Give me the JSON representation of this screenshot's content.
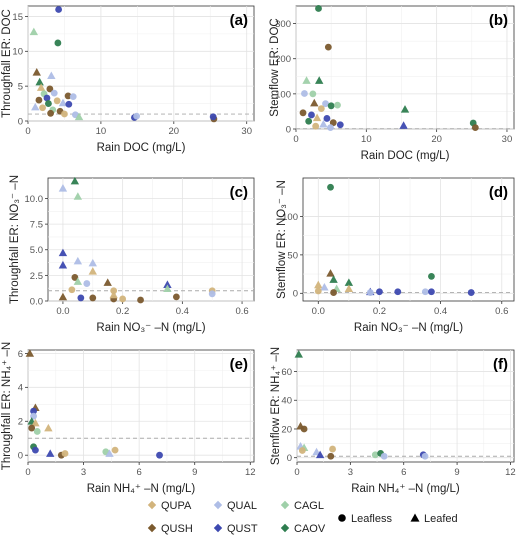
{
  "colors": {
    "QUPA": "#d2b47c",
    "QUAL": "#aebde6",
    "CAGL": "#9fd0a9",
    "QUSH": "#7b5a2e",
    "QUST": "#3d49b0",
    "CAOV": "#2e7d4f"
  },
  "legend": {
    "species": [
      {
        "key": "QUPA",
        "label": "QUPA"
      },
      {
        "key": "QUAL",
        "label": "QUAL"
      },
      {
        "key": "CAGL",
        "label": "CAGL"
      },
      {
        "key": "QUSH",
        "label": "QUSH"
      },
      {
        "key": "QUST",
        "label": "QUST"
      },
      {
        "key": "CAOV",
        "label": "CAOV"
      }
    ],
    "phases": [
      {
        "key": "leafless",
        "label": "Leafless"
      },
      {
        "key": "leafed",
        "label": "Leafed"
      }
    ]
  },
  "chart_data": [
    {
      "panel": "(a)",
      "type": "scatter",
      "xlabel": "Rain DOC (mg/L)",
      "ylabel": "Throughfall ER: DOC",
      "xlim": [
        0,
        31
      ],
      "ylim": [
        0,
        16.5
      ],
      "xticks": [
        0,
        10,
        20,
        30
      ],
      "yticks": [
        0,
        5,
        10,
        15
      ],
      "ref_line": 1,
      "points": [
        {
          "x": 0.8,
          "y": 12.8,
          "s": "CAGL",
          "m": "leafed"
        },
        {
          "x": 4.2,
          "y": 16.0,
          "s": "QUST",
          "m": "leafless"
        },
        {
          "x": 4.1,
          "y": 11.2,
          "s": "CAOV",
          "m": "leafless"
        },
        {
          "x": 1.2,
          "y": 7.0,
          "s": "QUSH",
          "m": "leafed"
        },
        {
          "x": 1.6,
          "y": 5.6,
          "s": "CAOV",
          "m": "leafed"
        },
        {
          "x": 3.2,
          "y": 6.5,
          "s": "QUAL",
          "m": "leafed"
        },
        {
          "x": 1.8,
          "y": 4.8,
          "s": "QUPA",
          "m": "leafed"
        },
        {
          "x": 3.0,
          "y": 4.6,
          "s": "QUSH",
          "m": "leafless"
        },
        {
          "x": 3.6,
          "y": 4.0,
          "s": "QUAL",
          "m": "leafless"
        },
        {
          "x": 2.2,
          "y": 3.9,
          "s": "CAGL",
          "m": "leafless"
        },
        {
          "x": 5.5,
          "y": 3.6,
          "s": "QUSH",
          "m": "leafless"
        },
        {
          "x": 6.2,
          "y": 3.5,
          "s": "QUAL",
          "m": "leafless"
        },
        {
          "x": 2.6,
          "y": 3.3,
          "s": "QUST",
          "m": "leafless"
        },
        {
          "x": 1.5,
          "y": 3.0,
          "s": "QUSH",
          "m": "leafless"
        },
        {
          "x": 4.0,
          "y": 2.9,
          "s": "QUPA",
          "m": "leafless"
        },
        {
          "x": 2.8,
          "y": 2.5,
          "s": "CAOV",
          "m": "leafless"
        },
        {
          "x": 4.8,
          "y": 2.6,
          "s": "QUAL",
          "m": "leafed"
        },
        {
          "x": 5.6,
          "y": 2.4,
          "s": "QUST",
          "m": "leafless"
        },
        {
          "x": 1.0,
          "y": 2.0,
          "s": "QUAL",
          "m": "leafed"
        },
        {
          "x": 2.0,
          "y": 1.9,
          "s": "QUPA",
          "m": "leafless"
        },
        {
          "x": 3.4,
          "y": 1.6,
          "s": "CAGL",
          "m": "leafless"
        },
        {
          "x": 4.4,
          "y": 1.4,
          "s": "QUSH",
          "m": "leafless"
        },
        {
          "x": 3.1,
          "y": 1.1,
          "s": "QUSH",
          "m": "leafless"
        },
        {
          "x": 5.0,
          "y": 1.0,
          "s": "QUPA",
          "m": "leafless"
        },
        {
          "x": 6.5,
          "y": 0.9,
          "s": "QUAL",
          "m": "leafless"
        },
        {
          "x": 7.0,
          "y": 0.6,
          "s": "CAGL",
          "m": "leafed"
        },
        {
          "x": 14.6,
          "y": 0.5,
          "s": "QUST",
          "m": "leafless"
        },
        {
          "x": 14.9,
          "y": 0.7,
          "s": "QUAL",
          "m": "leafless"
        },
        {
          "x": 25.5,
          "y": 0.3,
          "s": "QUSH",
          "m": "leafless"
        },
        {
          "x": 25.4,
          "y": 0.6,
          "s": "QUST",
          "m": "leafless"
        }
      ]
    },
    {
      "panel": "(b)",
      "type": "scatter",
      "xlabel": "Rain DOC (mg/L)",
      "ylabel": "Stemflow ER: DOC",
      "xlim": [
        0,
        31
      ],
      "ylim": [
        0,
        350
      ],
      "xticks": [
        0,
        10,
        20,
        30
      ],
      "yticks": [
        0,
        100,
        200,
        300
      ],
      "ref_line": 1,
      "points": [
        {
          "x": 3.2,
          "y": 343,
          "s": "CAOV",
          "m": "leafless"
        },
        {
          "x": 4.6,
          "y": 233,
          "s": "QUSH",
          "m": "leafless"
        },
        {
          "x": 1.5,
          "y": 138,
          "s": "CAGL",
          "m": "leafed"
        },
        {
          "x": 3.3,
          "y": 138,
          "s": "CAOV",
          "m": "leafed"
        },
        {
          "x": 1.2,
          "y": 101,
          "s": "QUAL",
          "m": "leafless"
        },
        {
          "x": 2.4,
          "y": 100,
          "s": "CAGL",
          "m": "leafless"
        },
        {
          "x": 2.6,
          "y": 74,
          "s": "QUSH",
          "m": "leafed"
        },
        {
          "x": 4.2,
          "y": 72,
          "s": "QUAL",
          "m": "leafless"
        },
        {
          "x": 5.0,
          "y": 66,
          "s": "CAOV",
          "m": "leafless"
        },
        {
          "x": 5.9,
          "y": 68,
          "s": "CAGL",
          "m": "leafless"
        },
        {
          "x": 3.6,
          "y": 58,
          "s": "QUPA",
          "m": "leafless"
        },
        {
          "x": 15.5,
          "y": 56,
          "s": "CAOV",
          "m": "leafed"
        },
        {
          "x": 1.0,
          "y": 46,
          "s": "QUSH",
          "m": "leafless"
        },
        {
          "x": 2.2,
          "y": 40,
          "s": "QUST",
          "m": "leafless"
        },
        {
          "x": 3.0,
          "y": 32,
          "s": "QUPA",
          "m": "leafed"
        },
        {
          "x": 4.4,
          "y": 30,
          "s": "QUST",
          "m": "leafless"
        },
        {
          "x": 1.8,
          "y": 22,
          "s": "CAOV",
          "m": "leafless"
        },
        {
          "x": 5.3,
          "y": 18,
          "s": "QUSH",
          "m": "leafless"
        },
        {
          "x": 25.2,
          "y": 17,
          "s": "CAOV",
          "m": "leafless"
        },
        {
          "x": 3.9,
          "y": 14,
          "s": "QUAL",
          "m": "leafed"
        },
        {
          "x": 6.3,
          "y": 12,
          "s": "QUST",
          "m": "leafless"
        },
        {
          "x": 2.8,
          "y": 8,
          "s": "QUPA",
          "m": "leafless"
        },
        {
          "x": 15.3,
          "y": 10,
          "s": "QUST",
          "m": "leafed"
        },
        {
          "x": 25.5,
          "y": 4,
          "s": "QUSH",
          "m": "leafless"
        },
        {
          "x": 4.9,
          "y": 4,
          "s": "QUAL",
          "m": "leafless"
        }
      ]
    },
    {
      "panel": "(c)",
      "type": "scatter",
      "xlabel": "Rain NO₃⁻ –N (mg/L)",
      "ylabel": "Throughfall ER: NO₃⁻ –N",
      "xlim": [
        -0.05,
        0.64
      ],
      "ylim": [
        0,
        12
      ],
      "xticks": [
        0.0,
        0.2,
        0.4,
        0.6
      ],
      "xtick_labels": [
        "0.0",
        "0.2",
        "0.4",
        "0.6"
      ],
      "yticks": [
        0,
        2.5,
        5,
        7.5,
        10
      ],
      "ytick_labels": [
        "0.0",
        "2.5",
        "5.0",
        "7.5",
        "10.0"
      ],
      "ref_line": 1,
      "points": [
        {
          "x": 0.04,
          "y": 11.7,
          "s": "CAOV",
          "m": "leafed"
        },
        {
          "x": 0.0,
          "y": 11.0,
          "s": "QUAL",
          "m": "leafed"
        },
        {
          "x": 0.05,
          "y": 10.2,
          "s": "CAGL",
          "m": "leafed"
        },
        {
          "x": 0.0,
          "y": 4.7,
          "s": "QUST",
          "m": "leafed"
        },
        {
          "x": 0.0,
          "y": 3.5,
          "s": "QUST",
          "m": "leafed"
        },
        {
          "x": 0.05,
          "y": 3.9,
          "s": "QUAL",
          "m": "leafed"
        },
        {
          "x": 0.1,
          "y": 3.7,
          "s": "QUAL",
          "m": "leafed"
        },
        {
          "x": 0.1,
          "y": 2.9,
          "s": "QUPA",
          "m": "leafed"
        },
        {
          "x": 0.04,
          "y": 2.3,
          "s": "QUSH",
          "m": "leafless"
        },
        {
          "x": 0.05,
          "y": 1.9,
          "s": "CAGL",
          "m": "leafed"
        },
        {
          "x": 0.08,
          "y": 1.7,
          "s": "QUAL",
          "m": "leafless"
        },
        {
          "x": 0.15,
          "y": 1.8,
          "s": "QUSH",
          "m": "leafed"
        },
        {
          "x": 0.35,
          "y": 1.6,
          "s": "QUST",
          "m": "leafed"
        },
        {
          "x": 0.35,
          "y": 1.2,
          "s": "CAGL",
          "m": "leafed"
        },
        {
          "x": 0.03,
          "y": 1.1,
          "s": "QUPA",
          "m": "leafless"
        },
        {
          "x": 0.17,
          "y": 1.0,
          "s": "QUPA",
          "m": "leafless"
        },
        {
          "x": 0.5,
          "y": 1.0,
          "s": "QUPA",
          "m": "leafless"
        },
        {
          "x": 0.5,
          "y": 0.7,
          "s": "QUAL",
          "m": "leafless"
        },
        {
          "x": 0.0,
          "y": 0.4,
          "s": "QUSH",
          "m": "leafed"
        },
        {
          "x": 0.06,
          "y": 0.3,
          "s": "QUST",
          "m": "leafless"
        },
        {
          "x": 0.1,
          "y": 0.3,
          "s": "QUSH",
          "m": "leafless"
        },
        {
          "x": 0.17,
          "y": 0.2,
          "s": "QUSH",
          "m": "leafless"
        },
        {
          "x": 0.2,
          "y": 0.2,
          "s": "QUPA",
          "m": "leafless"
        },
        {
          "x": 0.26,
          "y": 0.1,
          "s": "QUSH",
          "m": "leafless"
        },
        {
          "x": 0.38,
          "y": 0.4,
          "s": "QUSH",
          "m": "leafless"
        },
        {
          "x": 0.17,
          "y": 0.6,
          "s": "QUPA",
          "m": "leafed"
        }
      ]
    },
    {
      "panel": "(d)",
      "type": "scatter",
      "xlabel": "Rain NO₃⁻ –N (mg/L)",
      "ylabel": "Stemflow ER: NO₃⁻ –N",
      "xlim": [
        -0.05,
        0.64
      ],
      "ylim": [
        -10,
        150
      ],
      "xticks": [
        0.0,
        0.2,
        0.4,
        0.6
      ],
      "xtick_labels": [
        "0.0",
        "0.2",
        "0.4",
        "0.6"
      ],
      "yticks": [
        0,
        50,
        100
      ],
      "ref_line": 1,
      "points": [
        {
          "x": 0.04,
          "y": 138,
          "s": "CAOV",
          "m": "leafless"
        },
        {
          "x": 0.04,
          "y": 26,
          "s": "QUSH",
          "m": "leafed"
        },
        {
          "x": 0.37,
          "y": 22,
          "s": "CAOV",
          "m": "leafless"
        },
        {
          "x": 0.05,
          "y": 18,
          "s": "CAOV",
          "m": "leafed"
        },
        {
          "x": 0.1,
          "y": 14,
          "s": "CAOV",
          "m": "leafed"
        },
        {
          "x": 0.0,
          "y": 11,
          "s": "QUPA",
          "m": "leafed"
        },
        {
          "x": 0.02,
          "y": 8,
          "s": "QUAL",
          "m": "leafed"
        },
        {
          "x": 0.06,
          "y": 6,
          "s": "CAGL",
          "m": "leafed"
        },
        {
          "x": 0.1,
          "y": 6,
          "s": "QUPA",
          "m": "leafed"
        },
        {
          "x": 0.0,
          "y": 3,
          "s": "QUPA",
          "m": "leafless"
        },
        {
          "x": 0.17,
          "y": 2,
          "s": "QUST",
          "m": "leafed"
        },
        {
          "x": 0.2,
          "y": 2,
          "s": "QUST",
          "m": "leafless"
        },
        {
          "x": 0.26,
          "y": 2,
          "s": "QUST",
          "m": "leafless"
        },
        {
          "x": 0.35,
          "y": 2,
          "s": "QUAL",
          "m": "leafless"
        },
        {
          "x": 0.37,
          "y": 2,
          "s": "QUST",
          "m": "leafless"
        },
        {
          "x": 0.5,
          "y": 1,
          "s": "QUST",
          "m": "leafless"
        },
        {
          "x": 0.17,
          "y": 1,
          "s": "QUAL",
          "m": "leafless"
        },
        {
          "x": 0.05,
          "y": 1,
          "s": "QUSH",
          "m": "leafless"
        }
      ]
    },
    {
      "panel": "(e)",
      "type": "scatter",
      "xlabel": "Rain NH₄⁺ –N (mg/L)",
      "ylabel": "Throughfall ER: NH₄⁺ –N",
      "xlim": [
        0,
        12.2
      ],
      "ylim": [
        -0.4,
        6.2
      ],
      "xticks": [
        0,
        3,
        6,
        9,
        12
      ],
      "yticks": [
        0,
        2,
        4,
        6
      ],
      "ref_line": 1,
      "points": [
        {
          "x": 0.1,
          "y": 6.0,
          "s": "QUSH",
          "m": "leafed"
        },
        {
          "x": 0.4,
          "y": 2.8,
          "s": "QUSH",
          "m": "leafed"
        },
        {
          "x": 0.3,
          "y": 2.6,
          "s": "QUST",
          "m": "leafless"
        },
        {
          "x": 0.3,
          "y": 2.3,
          "s": "QUAL",
          "m": "leafless"
        },
        {
          "x": 0.2,
          "y": 2.0,
          "s": "CAOV",
          "m": "leafed"
        },
        {
          "x": 0.4,
          "y": 1.9,
          "s": "QUPA",
          "m": "leafed"
        },
        {
          "x": 0.2,
          "y": 1.6,
          "s": "QUSH",
          "m": "leafless"
        },
        {
          "x": 1.1,
          "y": 1.6,
          "s": "QUPA",
          "m": "leafed"
        },
        {
          "x": 0.5,
          "y": 1.4,
          "s": "CAGL",
          "m": "leafless"
        },
        {
          "x": 0.3,
          "y": 0.5,
          "s": "CAOV",
          "m": "leafless"
        },
        {
          "x": 0.4,
          "y": 0.3,
          "s": "QUST",
          "m": "leafless"
        },
        {
          "x": 1.2,
          "y": 0.1,
          "s": "QUST",
          "m": "leafed"
        },
        {
          "x": 1.8,
          "y": 0.0,
          "s": "QUSH",
          "m": "leafless"
        },
        {
          "x": 2.0,
          "y": 0.1,
          "s": "QUPA",
          "m": "leafless"
        },
        {
          "x": 4.2,
          "y": 0.2,
          "s": "CAGL",
          "m": "leafless"
        },
        {
          "x": 4.7,
          "y": 0.3,
          "s": "QUPA",
          "m": "leafless"
        },
        {
          "x": 4.4,
          "y": 0.1,
          "s": "QUAL",
          "m": "leafed"
        },
        {
          "x": 7.1,
          "y": 0.0,
          "s": "QUST",
          "m": "leafless"
        }
      ]
    },
    {
      "panel": "(f)",
      "type": "scatter",
      "xlabel": "Rain NH₄⁺ –N (mg/L)",
      "ylabel": "Stemflow ER: NH₄⁺ –N",
      "xlim": [
        0,
        12.2
      ],
      "ylim": [
        -3,
        75
      ],
      "xticks": [
        0,
        3,
        6,
        9,
        12
      ],
      "yticks": [
        0,
        20,
        40,
        60
      ],
      "ref_line": 1,
      "points": [
        {
          "x": 0.1,
          "y": 72,
          "s": "CAOV",
          "m": "leafed"
        },
        {
          "x": 0.2,
          "y": 22,
          "s": "QUSH",
          "m": "leafed"
        },
        {
          "x": 0.4,
          "y": 20,
          "s": "QUSH",
          "m": "leafless"
        },
        {
          "x": 0.2,
          "y": 8,
          "s": "QUAL",
          "m": "leafed"
        },
        {
          "x": 0.4,
          "y": 7,
          "s": "CAGL",
          "m": "leafed"
        },
        {
          "x": 0.3,
          "y": 5,
          "s": "QUPA",
          "m": "leafless"
        },
        {
          "x": 1.1,
          "y": 4,
          "s": "QUAL",
          "m": "leafed"
        },
        {
          "x": 1.3,
          "y": 2,
          "s": "QUST",
          "m": "leafed"
        },
        {
          "x": 1.9,
          "y": 1,
          "s": "QUSH",
          "m": "leafless"
        },
        {
          "x": 2.0,
          "y": 6,
          "s": "QUPA",
          "m": "leafless"
        },
        {
          "x": 4.4,
          "y": 2,
          "s": "CAGL",
          "m": "leafless"
        },
        {
          "x": 4.7,
          "y": 3,
          "s": "CAOV",
          "m": "leafless"
        },
        {
          "x": 4.9,
          "y": 1,
          "s": "QUAL",
          "m": "leafless"
        },
        {
          "x": 7.1,
          "y": 2,
          "s": "QUST",
          "m": "leafless"
        },
        {
          "x": 7.2,
          "y": 1,
          "s": "QUAL",
          "m": "leafless"
        }
      ]
    }
  ]
}
